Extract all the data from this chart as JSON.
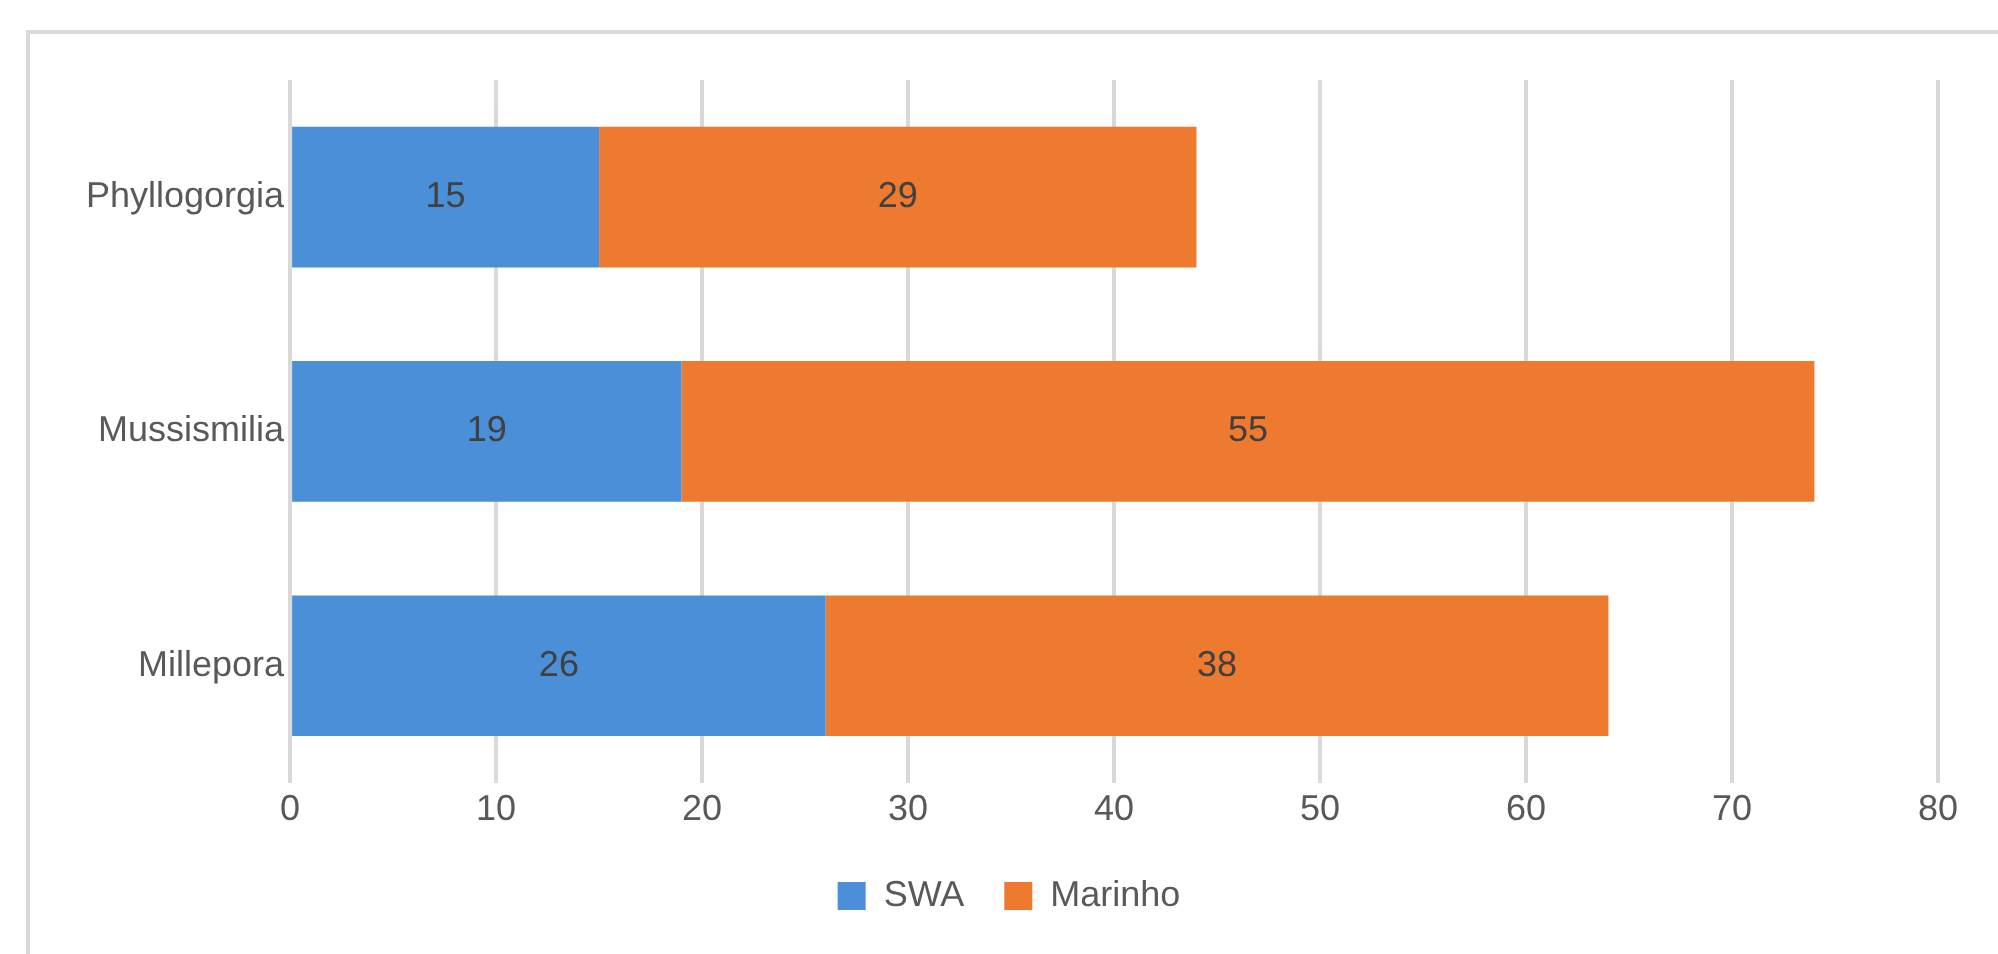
{
  "chart_data": {
    "type": "bar",
    "orientation": "horizontal",
    "stacked": true,
    "categories": [
      "Phyllogorgia",
      "Mussismilia",
      "Millepora"
    ],
    "series": [
      {
        "name": "SWA",
        "color": "#4a8fd8",
        "values": [
          15,
          19,
          26
        ]
      },
      {
        "name": "Marinho",
        "color": "#ee7a30",
        "values": [
          29,
          55,
          38
        ]
      }
    ],
    "xlim": [
      0,
      80
    ],
    "xticks": [
      0,
      10,
      20,
      30,
      40,
      50,
      60,
      70,
      80
    ],
    "grid": "x",
    "legend": "bottom",
    "data_labels": true
  }
}
